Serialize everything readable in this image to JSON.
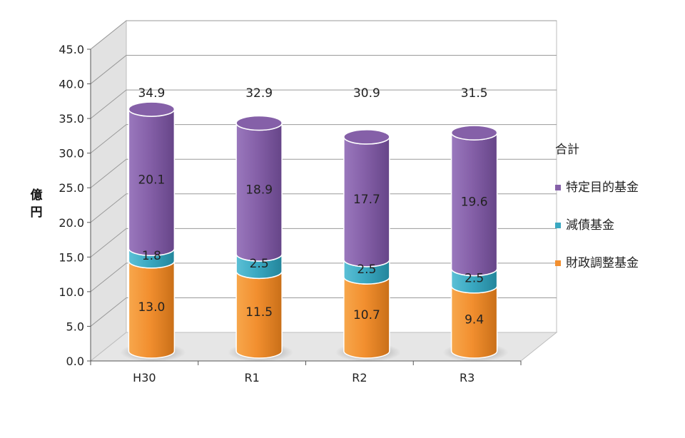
{
  "chart_data": {
    "type": "bar",
    "stacked": true,
    "style": "3d-cylinder",
    "categories": [
      "H30",
      "R1",
      "R2",
      "R3"
    ],
    "ylabel": "億円",
    "ylim": [
      0,
      45
    ],
    "ytick_step": 5,
    "ytick_labels": [
      "0.0",
      "5.0",
      "10.0",
      "15.0",
      "20.0",
      "25.0",
      "30.0",
      "35.0",
      "40.0",
      "45.0"
    ],
    "grid": true,
    "legend_position": "right",
    "total_name": "合計",
    "totals": [
      34.9,
      32.9,
      30.9,
      31.5
    ],
    "total_labels": [
      "34.9",
      "32.9",
      "30.9",
      "31.5"
    ],
    "series": [
      {
        "name": "財政調整基金",
        "values": [
          13.0,
          11.5,
          10.7,
          9.4
        ],
        "labels": [
          "13.0",
          "11.5",
          "10.7",
          "9.4"
        ],
        "color": "#f28f2f"
      },
      {
        "name": "減債基金",
        "values": [
          1.8,
          2.5,
          2.5,
          2.5
        ],
        "labels": [
          "1.8",
          "2.5",
          "2.5",
          "2.5"
        ],
        "color": "#3aa8c1"
      },
      {
        "name": "特定目的基金",
        "values": [
          20.1,
          18.9,
          17.7,
          19.6
        ],
        "labels": [
          "20.1",
          "18.9",
          "17.7",
          "19.6"
        ],
        "color": "#8560a8"
      }
    ]
  }
}
